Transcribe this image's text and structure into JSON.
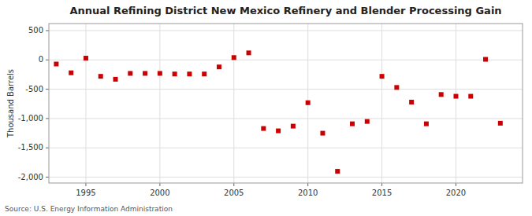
{
  "chart_data": {
    "type": "scatter",
    "title": "Annual Refining District New Mexico Refinery and Blender Processing Gain",
    "ylabel": "Thousand Barrels",
    "annotations": [
      "Source: U.S. Energy Information Administration"
    ],
    "x": [
      1993,
      1994,
      1995,
      1996,
      1997,
      1998,
      1999,
      2000,
      2001,
      2002,
      2003,
      2004,
      2005,
      2006,
      2007,
      2008,
      2009,
      2010,
      2011,
      2012,
      2013,
      2014,
      2015,
      2016,
      2017,
      2018,
      2019,
      2020,
      2021,
      2022,
      2023
    ],
    "values": [
      -70,
      -220,
      30,
      -280,
      -330,
      -230,
      -230,
      -230,
      -240,
      -240,
      -240,
      -120,
      40,
      120,
      -1170,
      -1210,
      -1130,
      -730,
      -1250,
      -1900,
      -1090,
      -1050,
      -280,
      -470,
      -720,
      -1090,
      -590,
      -620,
      -620,
      10,
      -1080
    ],
    "color": "#cc0000",
    "marker": "square",
    "xlim": [
      1992.5,
      2024.5
    ],
    "ylim": [
      -2100,
      620
    ],
    "xticks": [
      1995,
      2000,
      2005,
      2010,
      2015,
      2020
    ],
    "yticks": [
      500,
      0,
      -500,
      {
        "value": -1000,
        "label": "-1,000"
      },
      {
        "value": -1500,
        "label": "-1,500"
      },
      {
        "value": -2000,
        "label": "-2,000"
      }
    ],
    "grid": true
  }
}
